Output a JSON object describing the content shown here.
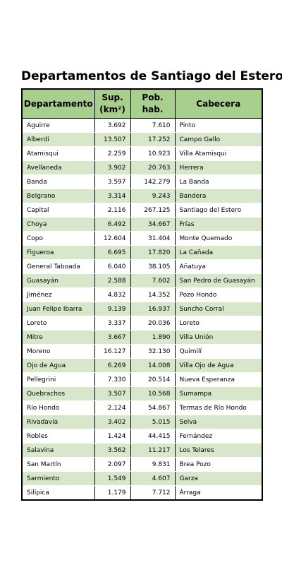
{
  "title": "Departamentos de Santiago del Estero",
  "headers": {
    "departamento": "Departamento",
    "superficie_line1": "Sup.",
    "superficie_line2": "(km²)",
    "poblacion_line1": "Pob.",
    "poblacion_line2": "hab.",
    "cabecera": "Cabecera"
  },
  "rows": [
    {
      "departamento": "Aguirre",
      "superficie": "3.692",
      "poblacion": "7.610",
      "cabecera": "Pinto"
    },
    {
      "departamento": "Alberdi",
      "superficie": "13.507",
      "poblacion": "17.252",
      "cabecera": "Campo Gallo"
    },
    {
      "departamento": "Atamisqui",
      "superficie": "2.259",
      "poblacion": "10.923",
      "cabecera": "Villa Atamisqui"
    },
    {
      "departamento": "Avellaneda",
      "superficie": "3.902",
      "poblacion": "20.763",
      "cabecera": "Herrera"
    },
    {
      "departamento": "Banda",
      "superficie": "3.597",
      "poblacion": "142.279",
      "cabecera": "La Banda"
    },
    {
      "departamento": "Belgrano",
      "superficie": "3.314",
      "poblacion": "9.243",
      "cabecera": "Bandera"
    },
    {
      "departamento": "Capital",
      "superficie": "2.116",
      "poblacion": "267.125",
      "cabecera": "Santiago del Estero"
    },
    {
      "departamento": "Choya",
      "superficie": "6.492",
      "poblacion": "34.667",
      "cabecera": "Frías"
    },
    {
      "departamento": "Copo",
      "superficie": "12.604",
      "poblacion": "31.404",
      "cabecera": "Monte Quemado"
    },
    {
      "departamento": "Figueroa",
      "superficie": "6.695",
      "poblacion": "17.820",
      "cabecera": "La Cañada"
    },
    {
      "departamento": "General Taboada",
      "superficie": "6.040",
      "poblacion": "38.105",
      "cabecera": "Añatuya"
    },
    {
      "departamento": "Guasayán",
      "superficie": "2.588",
      "poblacion": "7.602",
      "cabecera": "San Pedro de Guasayán"
    },
    {
      "departamento": "Jiménez",
      "superficie": "4.832",
      "poblacion": "14.352",
      "cabecera": "Pozo Hondo"
    },
    {
      "departamento": "Juan Felipe Ibarra",
      "superficie": "9.139",
      "poblacion": "16.937",
      "cabecera": "Suncho Corral"
    },
    {
      "departamento": "Loreto",
      "superficie": "3.337",
      "poblacion": "20.036",
      "cabecera": "Loreto"
    },
    {
      "departamento": "Mitre",
      "superficie": "3.667",
      "poblacion": "1.890",
      "cabecera": "Villa Unión"
    },
    {
      "departamento": "Moreno",
      "superficie": "16.127",
      "poblacion": "32.130",
      "cabecera": "Quimilí"
    },
    {
      "departamento": "Ojo de Agua",
      "superficie": "6.269",
      "poblacion": "14.008",
      "cabecera": "Villa Ojo de Agua"
    },
    {
      "departamento": "Pellegrini",
      "superficie": "7.330",
      "poblacion": "20.514",
      "cabecera": "Nueva Esperanza"
    },
    {
      "departamento": "Quebrachos",
      "superficie": "3.507",
      "poblacion": "10.568",
      "cabecera": "Sumampa"
    },
    {
      "departamento": "Río Hondo",
      "superficie": "2.124",
      "poblacion": "54.867",
      "cabecera": "Termas de Río Hondo"
    },
    {
      "departamento": "Rivadavia",
      "superficie": "3.402",
      "poblacion": "5.015",
      "cabecera": "Selva"
    },
    {
      "departamento": "Robles",
      "superficie": "1.424",
      "poblacion": "44.415",
      "cabecera": "Fernández"
    },
    {
      "departamento": "Salavina",
      "superficie": "3.562",
      "poblacion": "11.217",
      "cabecera": "Los Telares"
    },
    {
      "departamento": "San Martín",
      "superficie": "2.097",
      "poblacion": "9.831",
      "cabecera": "Brea Pozo"
    },
    {
      "departamento": "Sarmiento",
      "superficie": "1.549",
      "poblacion": "4.607",
      "cabecera": "Garza"
    },
    {
      "departamento": "Silípica",
      "superficie": "1.179",
      "poblacion": "7.712",
      "cabecera": "Árraga"
    }
  ],
  "colors": {
    "header_background": "#a9cf8e",
    "even_row_background": "#d8e7cc",
    "odd_row_background": "#ffffff",
    "border": "#000000"
  }
}
